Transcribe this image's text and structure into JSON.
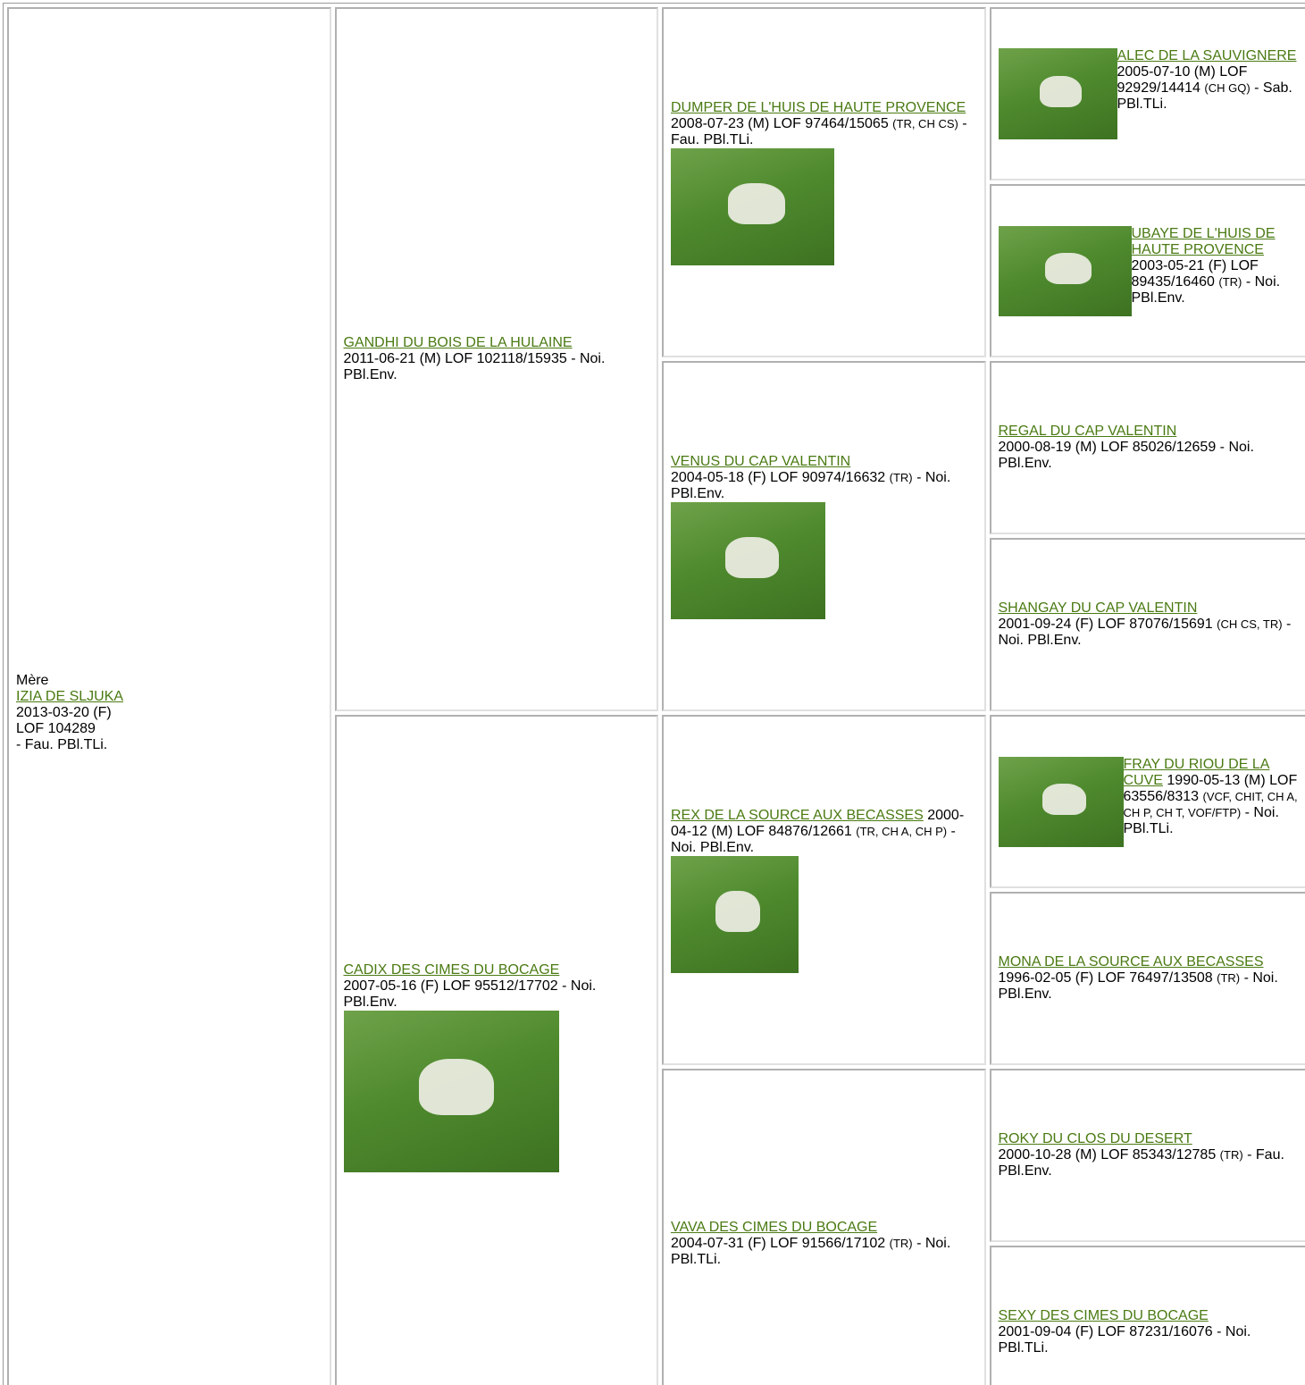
{
  "pedigree": {
    "mother": {
      "label": "Mère",
      "name": "IZIA DE SLJUKA",
      "dob": "2013-03-20 (F)",
      "registration": "LOF 104289",
      "coat": "- Fau. PBl.TLi."
    },
    "generation_2": [
      {
        "name": "GANDHI DU BOIS DE LA HULAINE",
        "info": "2011-06-21 (M) LOF 102118/15935",
        "coat": "- Noi. PBl.Env."
      },
      {
        "name": "CADIX DES CIMES DU BOCAGE",
        "info": "2007-05-16 (F) LOF 95512/17702",
        "coat": "- Noi. PBl.Env."
      }
    ],
    "generation_3": [
      {
        "name": "DUMPER DE L'HUIS DE HAUTE PROVENCE",
        "info": "2008-07-23 (M) LOF 97464/15065",
        "titles": "(TR, CH CS)",
        "coat": "- Fau. PBl.TLi."
      },
      {
        "name": "VENUS DU CAP VALENTIN",
        "info": "2004-05-18 (F) LOF 90974/16632",
        "titles": "(TR)",
        "coat": "- Noi. PBl.Env."
      },
      {
        "name": "REX DE LA SOURCE AUX BECASSES",
        "info": "2000-04-12 (M) LOF 84876/12661",
        "titles": "(TR, CH A, CH P)",
        "coat": "- Noi. PBl.Env."
      },
      {
        "name": "VAVA DES CIMES DU BOCAGE",
        "info": "2004-07-31 (F) LOF 91566/17102",
        "titles": "(TR)",
        "coat": "- Noi. PBl.TLi."
      }
    ],
    "generation_4": [
      {
        "name": "ALEC DE LA SAUVIGNERE",
        "info": "2005-07-10 (M) LOF 92929/14414",
        "titles": "(CH GQ)",
        "coat": "- Sab. PBl.TLi."
      },
      {
        "name": "UBAYE DE L'HUIS DE HAUTE PROVENCE",
        "info": "2003-05-21 (F) LOF 89435/16460",
        "titles": "(TR)",
        "coat": "- Noi. PBl.Env."
      },
      {
        "name": "REGAL DU CAP VALENTIN",
        "info": "2000-08-19 (M) LOF 85026/12659",
        "coat": "- Noi. PBl.Env."
      },
      {
        "name": "SHANGAY DU CAP VALENTIN",
        "info": "2001-09-24 (F) LOF 87076/15691",
        "titles": "(CH CS, TR)",
        "coat": "- Noi. PBl.Env."
      },
      {
        "name": "FRAY DU RIOU DE LA CUVE",
        "info": "1990-05-13 (M) LOF 63556/8313",
        "titles": "(VCF, CHIT, CH A, CH P, CH T, VOF/FTP)",
        "coat": "- Noi. PBl.TLi."
      },
      {
        "name": "MONA DE LA SOURCE AUX BECASSES",
        "info": "1996-02-05 (F) LOF 76497/13508",
        "titles": "(TR)",
        "coat": "- Noi. PBl.Env."
      },
      {
        "name": "ROKY DU CLOS DU DESERT",
        "info": "2000-10-28 (M) LOF 85343/12785",
        "titles": "(TR)",
        "coat": "- Fau. PBl.Env."
      },
      {
        "name": "SEXY DES CIMES DU BOCAGE",
        "info": "2001-09-04 (F) LOF 87231/16076",
        "coat": "- Noi. PBl.TLi."
      }
    ]
  }
}
